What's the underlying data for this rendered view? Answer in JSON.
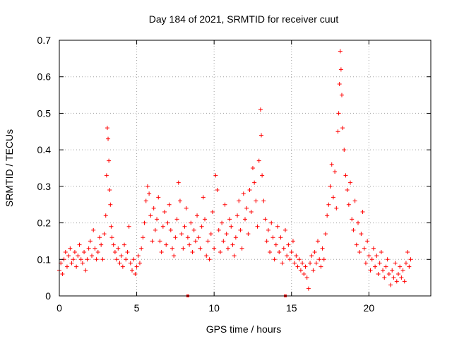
{
  "chart_data": {
    "type": "scatter",
    "title": "Day 184 of 2021, SRMTID for receiver cuut",
    "xlabel": "GPS time / hours",
    "ylabel": "SRMTID / TECUs",
    "xlim": [
      0,
      24
    ],
    "ylim": [
      0,
      0.7
    ],
    "xticks": [
      0,
      5,
      10,
      15,
      20
    ],
    "xtick_labels": [
      "0",
      "5",
      "10",
      "15",
      "20"
    ],
    "yticks": [
      0,
      0.1,
      0.2,
      0.3,
      0.4,
      0.5,
      0.6,
      0.7
    ],
    "ytick_labels": [
      "0",
      "0.1",
      "0.2",
      "0.3",
      "0.4",
      "0.5",
      "0.6",
      "0.7"
    ],
    "grid": true,
    "marker": "plus",
    "color": "#ff0000",
    "series": [
      {
        "name": "SRMTID",
        "points": [
          [
            0.0,
            0.07
          ],
          [
            0.1,
            0.09
          ],
          [
            0.2,
            0.06
          ],
          [
            0.3,
            0.1
          ],
          [
            0.4,
            0.12
          ],
          [
            0.5,
            0.08
          ],
          [
            0.6,
            0.11
          ],
          [
            0.7,
            0.13
          ],
          [
            0.8,
            0.09
          ],
          [
            0.9,
            0.1
          ],
          [
            1.0,
            0.12
          ],
          [
            1.1,
            0.08
          ],
          [
            1.2,
            0.11
          ],
          [
            1.3,
            0.14
          ],
          [
            1.4,
            0.1
          ],
          [
            1.5,
            0.09
          ],
          [
            1.6,
            0.12
          ],
          [
            1.7,
            0.07
          ],
          [
            1.8,
            0.1
          ],
          [
            1.9,
            0.13
          ],
          [
            2.0,
            0.15
          ],
          [
            2.1,
            0.11
          ],
          [
            2.2,
            0.18
          ],
          [
            2.3,
            0.13
          ],
          [
            2.4,
            0.1
          ],
          [
            2.5,
            0.12
          ],
          [
            2.6,
            0.16
          ],
          [
            2.7,
            0.14
          ],
          [
            2.8,
            0.1
          ],
          [
            2.9,
            0.17
          ],
          [
            3.0,
            0.22
          ],
          [
            3.05,
            0.33
          ],
          [
            3.1,
            0.46
          ],
          [
            3.15,
            0.43
          ],
          [
            3.2,
            0.37
          ],
          [
            3.25,
            0.29
          ],
          [
            3.3,
            0.25
          ],
          [
            3.35,
            0.19
          ],
          [
            3.4,
            0.16
          ],
          [
            3.5,
            0.14
          ],
          [
            3.6,
            0.12
          ],
          [
            3.7,
            0.1
          ],
          [
            3.8,
            0.13
          ],
          [
            3.9,
            0.09
          ],
          [
            4.0,
            0.11
          ],
          [
            4.1,
            0.08
          ],
          [
            4.2,
            0.14
          ],
          [
            4.3,
            0.1
          ],
          [
            4.4,
            0.12
          ],
          [
            4.5,
            0.19
          ],
          [
            4.6,
            0.09
          ],
          [
            4.7,
            0.07
          ],
          [
            4.8,
            0.1
          ],
          [
            4.9,
            0.06
          ],
          [
            5.0,
            0.08
          ],
          [
            5.1,
            0.11
          ],
          [
            5.2,
            0.09
          ],
          [
            5.3,
            0.13
          ],
          [
            5.4,
            0.16
          ],
          [
            5.5,
            0.2
          ],
          [
            5.6,
            0.26
          ],
          [
            5.7,
            0.3
          ],
          [
            5.8,
            0.28
          ],
          [
            5.9,
            0.22
          ],
          [
            6.0,
            0.15
          ],
          [
            6.1,
            0.24
          ],
          [
            6.2,
            0.18
          ],
          [
            6.3,
            0.21
          ],
          [
            6.4,
            0.27
          ],
          [
            6.5,
            0.15
          ],
          [
            6.6,
            0.12
          ],
          [
            6.7,
            0.19
          ],
          [
            6.8,
            0.23
          ],
          [
            6.9,
            0.14
          ],
          [
            7.0,
            0.2
          ],
          [
            7.1,
            0.25
          ],
          [
            7.2,
            0.18
          ],
          [
            7.3,
            0.13
          ],
          [
            7.4,
            0.11
          ],
          [
            7.5,
            0.16
          ],
          [
            7.6,
            0.21
          ],
          [
            7.7,
            0.31
          ],
          [
            7.8,
            0.26
          ],
          [
            7.9,
            0.17
          ],
          [
            8.0,
            0.13
          ],
          [
            8.1,
            0.19
          ],
          [
            8.2,
            0.24
          ],
          [
            8.3,
            0.16
          ],
          [
            8.4,
            0.14
          ],
          [
            8.5,
            0.2
          ],
          [
            8.6,
            0.12
          ],
          [
            8.7,
            0.18
          ],
          [
            8.8,
            0.15
          ],
          [
            8.9,
            0.22
          ],
          [
            9.0,
            0.16
          ],
          [
            9.1,
            0.13
          ],
          [
            9.2,
            0.19
          ],
          [
            9.3,
            0.27
          ],
          [
            9.4,
            0.21
          ],
          [
            9.5,
            0.11
          ],
          [
            9.6,
            0.15
          ],
          [
            9.7,
            0.1
          ],
          [
            9.8,
            0.17
          ],
          [
            9.9,
            0.23
          ],
          [
            10.0,
            0.13
          ],
          [
            10.1,
            0.33
          ],
          [
            10.2,
            0.29
          ],
          [
            10.3,
            0.18
          ],
          [
            10.4,
            0.12
          ],
          [
            10.5,
            0.2
          ],
          [
            10.6,
            0.15
          ],
          [
            10.7,
            0.25
          ],
          [
            10.8,
            0.17
          ],
          [
            10.9,
            0.13
          ],
          [
            11.0,
            0.21
          ],
          [
            11.1,
            0.19
          ],
          [
            11.2,
            0.14
          ],
          [
            11.3,
            0.11
          ],
          [
            11.4,
            0.16
          ],
          [
            11.5,
            0.22
          ],
          [
            11.6,
            0.26
          ],
          [
            11.7,
            0.18
          ],
          [
            11.8,
            0.13
          ],
          [
            11.9,
            0.28
          ],
          [
            12.0,
            0.21
          ],
          [
            12.1,
            0.24
          ],
          [
            12.2,
            0.17
          ],
          [
            12.3,
            0.29
          ],
          [
            12.4,
            0.23
          ],
          [
            12.5,
            0.35
          ],
          [
            12.6,
            0.31
          ],
          [
            12.7,
            0.26
          ],
          [
            12.8,
            0.19
          ],
          [
            12.9,
            0.37
          ],
          [
            13.0,
            0.51
          ],
          [
            13.05,
            0.44
          ],
          [
            13.1,
            0.33
          ],
          [
            13.2,
            0.26
          ],
          [
            13.3,
            0.21
          ],
          [
            13.4,
            0.15
          ],
          [
            13.5,
            0.18
          ],
          [
            13.6,
            0.12
          ],
          [
            13.7,
            0.2
          ],
          [
            13.8,
            0.16
          ],
          [
            13.9,
            0.1
          ],
          [
            14.0,
            0.14
          ],
          [
            14.1,
            0.19
          ],
          [
            14.2,
            0.12
          ],
          [
            14.3,
            0.16
          ],
          [
            14.4,
            0.09
          ],
          [
            14.5,
            0.13
          ],
          [
            14.6,
            0.18
          ],
          [
            14.7,
            0.11
          ],
          [
            14.8,
            0.14
          ],
          [
            14.9,
            0.1
          ],
          [
            15.0,
            0.12
          ],
          [
            15.1,
            0.15
          ],
          [
            15.2,
            0.09
          ],
          [
            15.3,
            0.11
          ],
          [
            15.4,
            0.08
          ],
          [
            15.5,
            0.1
          ],
          [
            15.6,
            0.07
          ],
          [
            15.7,
            0.09
          ],
          [
            15.8,
            0.06
          ],
          [
            15.9,
            0.08
          ],
          [
            16.0,
            0.05
          ],
          [
            16.1,
            0.02
          ],
          [
            16.2,
            0.09
          ],
          [
            16.3,
            0.11
          ],
          [
            16.4,
            0.07
          ],
          [
            16.5,
            0.12
          ],
          [
            16.6,
            0.09
          ],
          [
            16.7,
            0.15
          ],
          [
            16.8,
            0.1
          ],
          [
            16.9,
            0.08
          ],
          [
            17.0,
            0.13
          ],
          [
            17.1,
            0.1
          ],
          [
            17.2,
            0.17
          ],
          [
            17.3,
            0.22
          ],
          [
            17.4,
            0.25
          ],
          [
            17.5,
            0.3
          ],
          [
            17.6,
            0.36
          ],
          [
            17.7,
            0.27
          ],
          [
            17.8,
            0.34
          ],
          [
            17.9,
            0.24
          ],
          [
            18.0,
            0.45
          ],
          [
            18.05,
            0.5
          ],
          [
            18.1,
            0.58
          ],
          [
            18.15,
            0.67
          ],
          [
            18.2,
            0.62
          ],
          [
            18.25,
            0.55
          ],
          [
            18.3,
            0.46
          ],
          [
            18.4,
            0.4
          ],
          [
            18.5,
            0.33
          ],
          [
            18.6,
            0.29
          ],
          [
            18.7,
            0.25
          ],
          [
            18.8,
            0.31
          ],
          [
            18.9,
            0.21
          ],
          [
            19.0,
            0.18
          ],
          [
            19.1,
            0.26
          ],
          [
            19.2,
            0.14
          ],
          [
            19.3,
            0.2
          ],
          [
            19.4,
            0.12
          ],
          [
            19.5,
            0.17
          ],
          [
            19.6,
            0.23
          ],
          [
            19.7,
            0.13
          ],
          [
            19.8,
            0.09
          ],
          [
            19.9,
            0.15
          ],
          [
            20.0,
            0.11
          ],
          [
            20.1,
            0.07
          ],
          [
            20.2,
            0.1
          ],
          [
            20.3,
            0.13
          ],
          [
            20.4,
            0.08
          ],
          [
            20.5,
            0.11
          ],
          [
            20.6,
            0.06
          ],
          [
            20.7,
            0.09
          ],
          [
            20.8,
            0.12
          ],
          [
            20.9,
            0.07
          ],
          [
            21.0,
            0.05
          ],
          [
            21.1,
            0.08
          ],
          [
            21.2,
            0.1
          ],
          [
            21.3,
            0.06
          ],
          [
            21.4,
            0.03
          ],
          [
            21.5,
            0.07
          ],
          [
            21.6,
            0.05
          ],
          [
            21.7,
            0.09
          ],
          [
            21.8,
            0.04
          ],
          [
            21.9,
            0.06
          ],
          [
            22.0,
            0.08
          ],
          [
            22.1,
            0.05
          ],
          [
            22.2,
            0.07
          ],
          [
            22.3,
            0.04
          ],
          [
            22.4,
            0.09
          ],
          [
            22.5,
            0.12
          ],
          [
            22.6,
            0.08
          ],
          [
            22.7,
            0.1
          ]
        ]
      }
    ],
    "gap_markers": [
      8.3,
      14.6
    ]
  }
}
